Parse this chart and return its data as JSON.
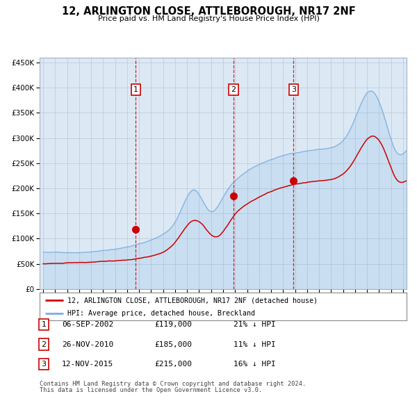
{
  "title": "12, ARLINGTON CLOSE, ATTLEBOROUGH, NR17 2NF",
  "subtitle": "Price paid vs. HM Land Registry's House Price Index (HPI)",
  "bg_color": "#dce9f5",
  "red_line_color": "#cc0000",
  "blue_line_color": "#7aade0",
  "red_dot_color": "#cc0000",
  "vline_color": "#cc0000",
  "grid_color": "#b0bfd0",
  "legend_label_red": "12, ARLINGTON CLOSE, ATTLEBOROUGH, NR17 2NF (detached house)",
  "legend_label_blue": "HPI: Average price, detached house, Breckland",
  "transactions": [
    {
      "num": 1,
      "date": "06-SEP-2002",
      "price": 119000,
      "hpi_diff": "21% ↓ HPI"
    },
    {
      "num": 2,
      "date": "26-NOV-2010",
      "price": 185000,
      "hpi_diff": "11% ↓ HPI"
    },
    {
      "num": 3,
      "date": "12-NOV-2015",
      "price": 215000,
      "hpi_diff": "16% ↓ HPI"
    }
  ],
  "footnote1": "Contains HM Land Registry data © Crown copyright and database right 2024.",
  "footnote2": "This data is licensed under the Open Government Licence v3.0.",
  "ylim": [
    0,
    460000
  ],
  "yticks": [
    0,
    50000,
    100000,
    150000,
    200000,
    250000,
    300000,
    350000,
    400000,
    450000
  ],
  "start_year": 1995,
  "end_year": 2025
}
